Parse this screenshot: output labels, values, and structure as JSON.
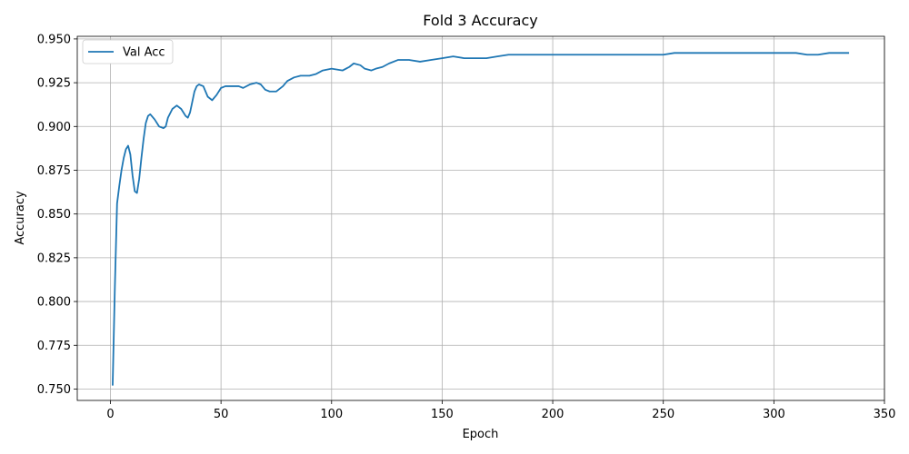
{
  "chart_data": {
    "type": "line",
    "title": "Fold 3 Accuracy",
    "xlabel": "Epoch",
    "ylabel": "Accuracy",
    "xlim": [
      -15,
      350
    ],
    "ylim": [
      0.7435,
      0.9515
    ],
    "xticks": [
      0,
      50,
      100,
      150,
      200,
      250,
      300,
      350
    ],
    "yticks": [
      0.75,
      0.775,
      0.8,
      0.825,
      0.85,
      0.875,
      0.9,
      0.925,
      0.95
    ],
    "xtick_labels": [
      "0",
      "50",
      "100",
      "150",
      "200",
      "250",
      "300",
      "350"
    ],
    "ytick_labels": [
      "0.750",
      "0.775",
      "0.800",
      "0.825",
      "0.850",
      "0.875",
      "0.900",
      "0.925",
      "0.950"
    ],
    "grid": true,
    "legend_position": "upper-left",
    "colors": {
      "series": "#1f77b4"
    },
    "series": [
      {
        "name": "Val Acc",
        "points": [
          [
            1,
            0.752
          ],
          [
            2,
            0.808
          ],
          [
            3,
            0.856
          ],
          [
            4,
            0.866
          ],
          [
            5,
            0.875
          ],
          [
            6,
            0.882
          ],
          [
            7,
            0.887
          ],
          [
            8,
            0.889
          ],
          [
            9,
            0.884
          ],
          [
            10,
            0.872
          ],
          [
            11,
            0.863
          ],
          [
            12,
            0.862
          ],
          [
            13,
            0.87
          ],
          [
            14,
            0.882
          ],
          [
            15,
            0.893
          ],
          [
            16,
            0.902
          ],
          [
            17,
            0.906
          ],
          [
            18,
            0.907
          ],
          [
            20,
            0.904
          ],
          [
            22,
            0.9
          ],
          [
            24,
            0.899
          ],
          [
            25,
            0.9
          ],
          [
            26,
            0.905
          ],
          [
            28,
            0.91
          ],
          [
            30,
            0.912
          ],
          [
            32,
            0.91
          ],
          [
            34,
            0.906
          ],
          [
            35,
            0.905
          ],
          [
            36,
            0.908
          ],
          [
            37,
            0.914
          ],
          [
            38,
            0.92
          ],
          [
            39,
            0.923
          ],
          [
            40,
            0.924
          ],
          [
            42,
            0.923
          ],
          [
            43,
            0.92
          ],
          [
            44,
            0.917
          ],
          [
            46,
            0.915
          ],
          [
            48,
            0.918
          ],
          [
            50,
            0.922
          ],
          [
            52,
            0.923
          ],
          [
            55,
            0.923
          ],
          [
            58,
            0.923
          ],
          [
            60,
            0.922
          ],
          [
            63,
            0.924
          ],
          [
            66,
            0.925
          ],
          [
            68,
            0.924
          ],
          [
            70,
            0.921
          ],
          [
            72,
            0.92
          ],
          [
            75,
            0.92
          ],
          [
            78,
            0.923
          ],
          [
            80,
            0.926
          ],
          [
            83,
            0.928
          ],
          [
            86,
            0.929
          ],
          [
            90,
            0.929
          ],
          [
            93,
            0.93
          ],
          [
            96,
            0.932
          ],
          [
            100,
            0.933
          ],
          [
            105,
            0.932
          ],
          [
            108,
            0.934
          ],
          [
            110,
            0.936
          ],
          [
            113,
            0.935
          ],
          [
            115,
            0.933
          ],
          [
            118,
            0.932
          ],
          [
            120,
            0.933
          ],
          [
            123,
            0.934
          ],
          [
            126,
            0.936
          ],
          [
            130,
            0.938
          ],
          [
            135,
            0.938
          ],
          [
            140,
            0.937
          ],
          [
            145,
            0.938
          ],
          [
            150,
            0.939
          ],
          [
            155,
            0.94
          ],
          [
            160,
            0.939
          ],
          [
            165,
            0.939
          ],
          [
            170,
            0.939
          ],
          [
            175,
            0.94
          ],
          [
            180,
            0.941
          ],
          [
            185,
            0.941
          ],
          [
            190,
            0.941
          ],
          [
            195,
            0.941
          ],
          [
            200,
            0.941
          ],
          [
            210,
            0.941
          ],
          [
            220,
            0.941
          ],
          [
            230,
            0.941
          ],
          [
            240,
            0.941
          ],
          [
            250,
            0.941
          ],
          [
            255,
            0.942
          ],
          [
            260,
            0.942
          ],
          [
            265,
            0.942
          ],
          [
            270,
            0.942
          ],
          [
            275,
            0.942
          ],
          [
            280,
            0.942
          ],
          [
            285,
            0.942
          ],
          [
            290,
            0.942
          ],
          [
            295,
            0.942
          ],
          [
            300,
            0.942
          ],
          [
            305,
            0.942
          ],
          [
            310,
            0.942
          ],
          [
            315,
            0.941
          ],
          [
            320,
            0.941
          ],
          [
            325,
            0.942
          ],
          [
            330,
            0.942
          ],
          [
            334,
            0.942
          ]
        ]
      }
    ]
  }
}
